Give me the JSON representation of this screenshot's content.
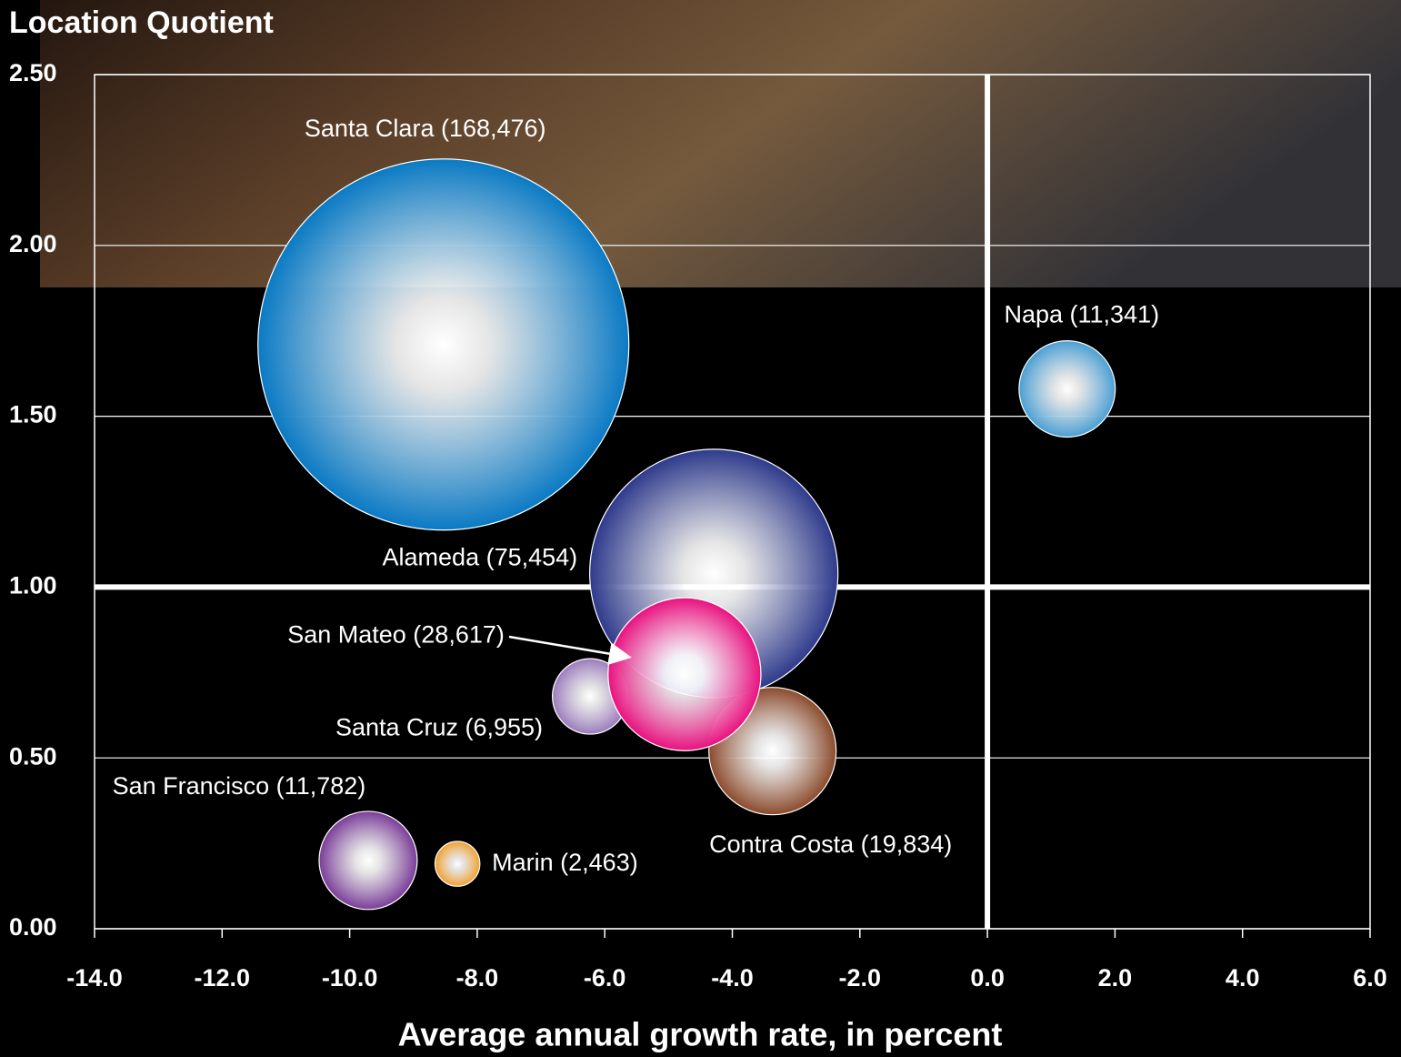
{
  "chart_data": {
    "type": "bubble",
    "title": "Location Quotient",
    "x_label": "Average annual growth rate, in percent",
    "xlim": [
      -14,
      6
    ],
    "ylim": [
      0,
      2.5
    ],
    "xticks": [
      {
        "value": -14,
        "label": "-14.0"
      },
      {
        "value": -12,
        "label": "-12.0"
      },
      {
        "value": -10,
        "label": "-10.0"
      },
      {
        "value": -8,
        "label": "-8.0"
      },
      {
        "value": -6,
        "label": "-6.0"
      },
      {
        "value": -4,
        "label": "-4.0"
      },
      {
        "value": -2,
        "label": "-2.0"
      },
      {
        "value": 0,
        "label": "0.0"
      },
      {
        "value": 2,
        "label": "2.0"
      },
      {
        "value": 4,
        "label": "4.0"
      },
      {
        "value": 6,
        "label": "6.0"
      }
    ],
    "yticks": [
      {
        "value": 0,
        "label": "0.00"
      },
      {
        "value": 0.5,
        "label": "0.50"
      },
      {
        "value": 1,
        "label": "1.00"
      },
      {
        "value": 1.5,
        "label": "1.50"
      },
      {
        "value": 2,
        "label": "2.00"
      },
      {
        "value": 2.5,
        "label": "2.50"
      }
    ],
    "grid": true,
    "reference_lines": {
      "x": 0,
      "y": 1
    },
    "points": [
      {
        "label": "Santa Clara (168,476)",
        "x": -8.53,
        "y": 1.71,
        "size": 168476,
        "color": "#0a7ac4"
      },
      {
        "label": "Napa (11,341)",
        "x": 1.25,
        "y": 1.58,
        "size": 11341,
        "color": "#4a9fd4"
      },
      {
        "label": "Alameda (75,454)",
        "x": -4.29,
        "y": 1.04,
        "size": 75454,
        "color": "#2e3a8c"
      },
      {
        "label": "Contra Costa (19,834)",
        "x": -3.37,
        "y": 0.52,
        "size": 19834,
        "color": "#8b4a2b"
      },
      {
        "label": "Santa Cruz (6,955)",
        "x": -6.23,
        "y": 0.68,
        "size": 6955,
        "color": "#9b7bbd"
      },
      {
        "label": "San Mateo (28,617)",
        "x": -4.75,
        "y": 0.745,
        "size": 28617,
        "color": "#e8117f"
      },
      {
        "label": "San Francisco (11,782)",
        "x": -9.71,
        "y": 0.2,
        "size": 11782,
        "color": "#7a3c98"
      },
      {
        "label": "Marin (2,463)",
        "x": -8.31,
        "y": 0.19,
        "size": 2463,
        "color": "#f0a030"
      }
    ]
  }
}
